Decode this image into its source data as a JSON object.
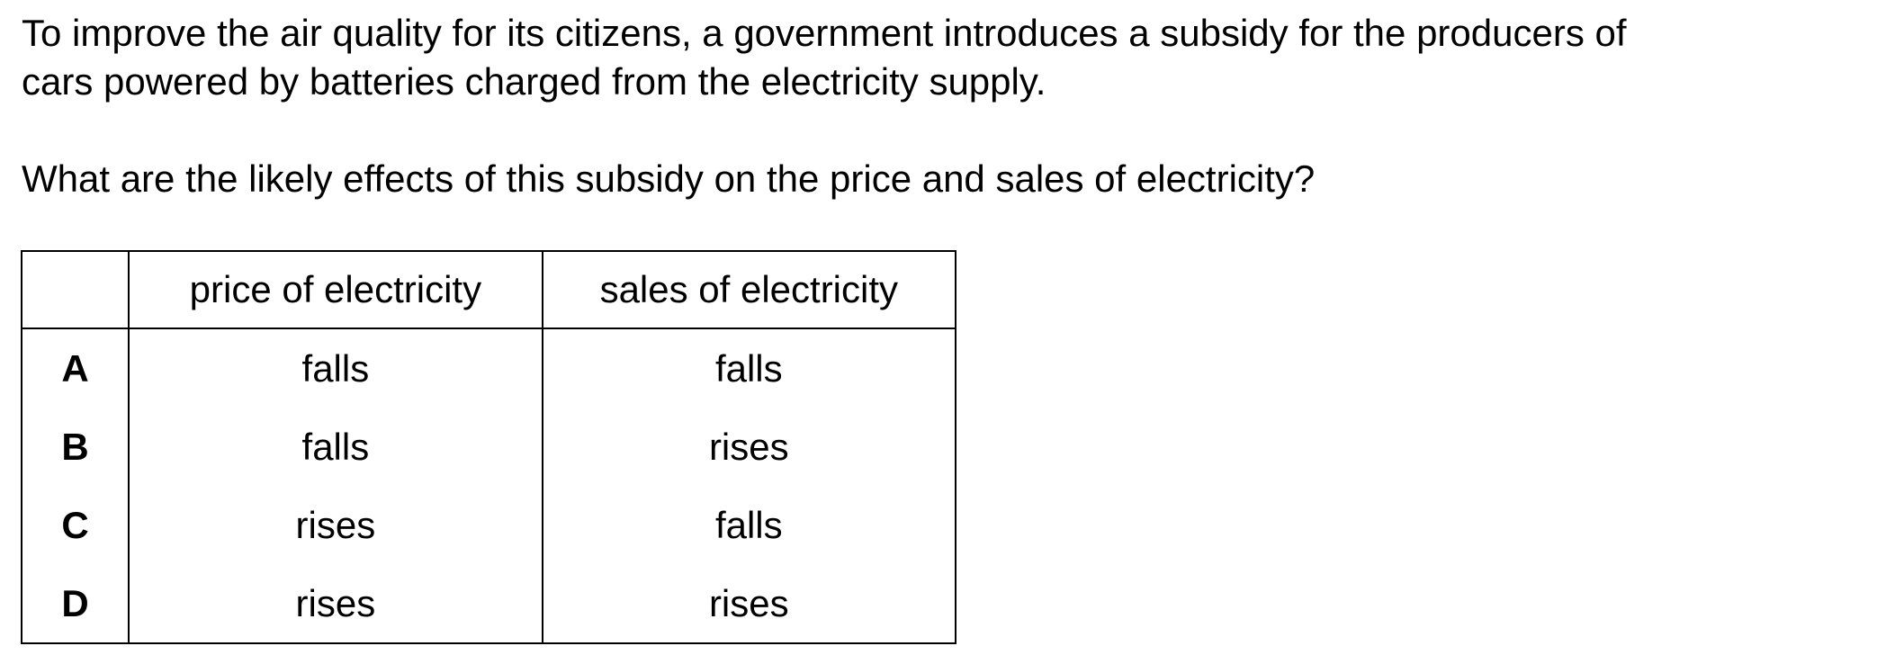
{
  "question": {
    "intro_line1": "To improve the air quality for its citizens, a government introduces a subsidy for the producers of",
    "intro_line2": "cars powered by batteries charged from the electricity supply.",
    "prompt": "What are the likely effects of this subsidy on the price and sales of electricity?"
  },
  "table": {
    "headers": [
      "",
      "price of electricity",
      "sales of electricity"
    ],
    "rows": [
      {
        "key": "A",
        "price": "falls",
        "sales": "falls"
      },
      {
        "key": "B",
        "price": "falls",
        "sales": "rises"
      },
      {
        "key": "C",
        "price": "rises",
        "sales": "falls"
      },
      {
        "key": "D",
        "price": "rises",
        "sales": "rises"
      }
    ]
  }
}
